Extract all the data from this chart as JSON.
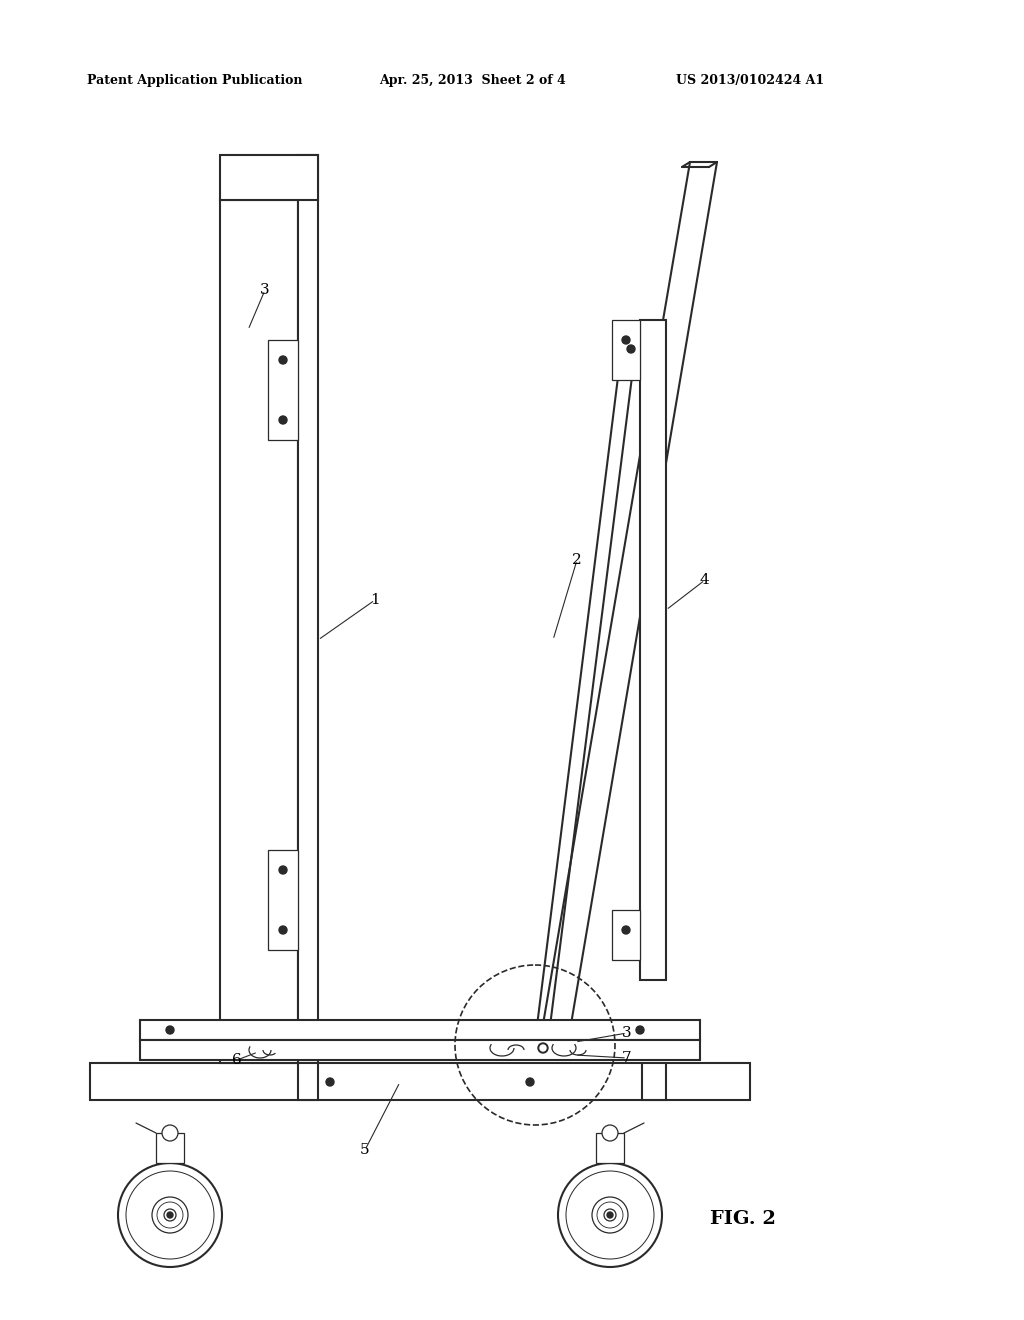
{
  "bg_color": "#ffffff",
  "line_color": "#2a2a2a",
  "header_text1": "Patent Application Publication",
  "header_text2": "Apr. 25, 2013  Sheet 2 of 4",
  "header_text3": "US 2013/0102424 A1",
  "fig_label": "FIG. 2",
  "lw_main": 1.5,
  "lw_thin": 0.9,
  "lw_thick": 2.2
}
